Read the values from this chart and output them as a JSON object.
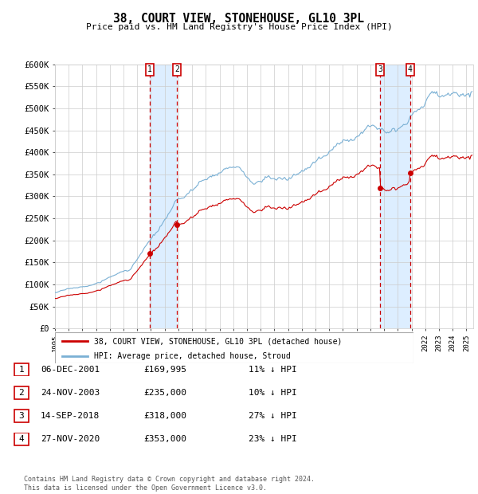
{
  "title": "38, COURT VIEW, STONEHOUSE, GL10 3PL",
  "subtitle": "Price paid vs. HM Land Registry's House Price Index (HPI)",
  "ylabel_ticks": [
    0,
    50000,
    100000,
    150000,
    200000,
    250000,
    300000,
    350000,
    400000,
    450000,
    500000,
    550000,
    600000
  ],
  "ylabel_labels": [
    "£0",
    "£50K",
    "£100K",
    "£150K",
    "£200K",
    "£250K",
    "£300K",
    "£350K",
    "£400K",
    "£450K",
    "£500K",
    "£550K",
    "£600K"
  ],
  "xmin": 1995.0,
  "xmax": 2025.5,
  "ymin": 0,
  "ymax": 600000,
  "sales": [
    {
      "num": 1,
      "date": "06-DEC-2001",
      "price": 169995,
      "pct": "11%",
      "year": 2001.917
    },
    {
      "num": 2,
      "date": "24-NOV-2003",
      "price": 235000,
      "pct": "10%",
      "year": 2003.896
    },
    {
      "num": 3,
      "date": "14-SEP-2018",
      "price": 318000,
      "pct": "27%",
      "year": 2018.708
    },
    {
      "num": 4,
      "date": "27-NOV-2020",
      "price": 353000,
      "pct": "23%",
      "year": 2020.904
    }
  ],
  "legend_line1": "38, COURT VIEW, STONEHOUSE, GL10 3PL (detached house)",
  "legend_line2": "HPI: Average price, detached house, Stroud",
  "table_rows": [
    [
      "1",
      "06-DEC-2001",
      "£169,995",
      "11% ↓ HPI"
    ],
    [
      "2",
      "24-NOV-2003",
      "£235,000",
      "10% ↓ HPI"
    ],
    [
      "3",
      "14-SEP-2018",
      "£318,000",
      "27% ↓ HPI"
    ],
    [
      "4",
      "27-NOV-2020",
      "£353,000",
      "23% ↓ HPI"
    ]
  ],
  "footer": "Contains HM Land Registry data © Crown copyright and database right 2024.\nThis data is licensed under the Open Government Licence v3.0.",
  "red_color": "#cc0000",
  "blue_color": "#7ab0d4",
  "shade_color": "#ddeeff",
  "grid_color": "#cccccc",
  "background_color": "#ffffff"
}
